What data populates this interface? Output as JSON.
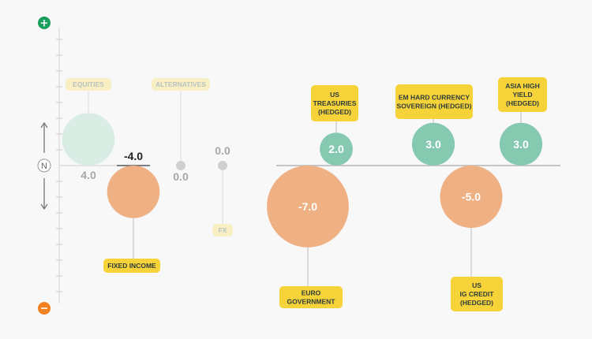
{
  "scale": {
    "neutral_label": "N",
    "plus_icon": "plus-icon",
    "minus_icon": "minus-icon",
    "plus_color": "#1a9e5c",
    "minus_color": "#f48120"
  },
  "colors": {
    "positive": "#85c9b0",
    "negative": "#efb083",
    "positive_faint": "#d9ede5",
    "neutral": "#d0d0d0",
    "label_bg": "#f7d33a",
    "label_bg_faint": "#f9efc4",
    "label_text": "#2d3c3a",
    "label_text_faint": "#b8c4c0"
  },
  "chart_data": {
    "type": "bubble",
    "title": "",
    "xlabel": "",
    "ylabel": "",
    "points": [
      {
        "category": "EQUITIES",
        "value": 4.0,
        "display": "4.0",
        "style": "faint"
      },
      {
        "category": "FIXED INCOME",
        "value": -4.0,
        "display": "-4.0",
        "style": "normal"
      },
      {
        "category": "ALTERNATIVES",
        "value": 0.0,
        "display": "0.0",
        "style": "faint"
      },
      {
        "category": "FX",
        "value": 0.0,
        "display": "0.0",
        "style": "faint"
      },
      {
        "category": "EURO\nGOVERNMENT",
        "value": -7.0,
        "display": "-7.0",
        "style": "normal"
      },
      {
        "category": "US\nTREASURIES\n(HEDGED)",
        "value": 2.0,
        "display": "2.0",
        "style": "normal"
      },
      {
        "category": "EM HARD CURRENCY\nSOVEREIGN (HEDGED)",
        "value": 3.0,
        "display": "3.0",
        "style": "normal"
      },
      {
        "category": "US\nIG CREDIT\n(HEDGED)",
        "value": -5.0,
        "display": "-5.0",
        "style": "normal"
      },
      {
        "category": "ASIA HIGH\nYIELD\n(HEDGED)",
        "value": 3.0,
        "display": "3.0",
        "style": "normal"
      }
    ]
  }
}
